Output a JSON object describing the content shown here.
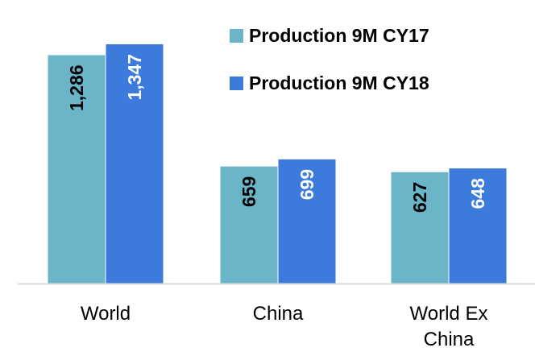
{
  "chart_data": {
    "type": "bar",
    "title": "",
    "xlabel": "",
    "ylabel": "",
    "categories": [
      [
        "World"
      ],
      [
        "China"
      ],
      [
        "World Ex",
        "China"
      ]
    ],
    "series": [
      {
        "name": "Production 9M CY17",
        "values": [
          1286,
          659,
          627
        ],
        "labels": [
          "1,286",
          "659",
          "627"
        ],
        "color": "#6bb5c9",
        "label_color": "#000000"
      },
      {
        "name": "Production 9M CY18",
        "values": [
          1347,
          699,
          648
        ],
        "labels": [
          "1,347",
          "699",
          "648"
        ],
        "color": "#3c7bdc",
        "label_color": "#ffffff"
      }
    ],
    "ylim": [
      0,
      1400
    ],
    "grid": false,
    "legend_position": "top-right",
    "data_label_orientation": "vertical"
  }
}
